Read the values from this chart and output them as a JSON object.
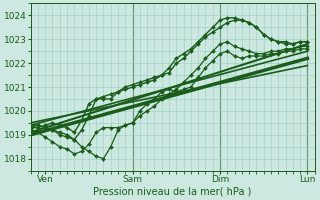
{
  "background_color": "#cce8e0",
  "grid_color": "#99ccc0",
  "line_color": "#1a5c1a",
  "xlabel": "Pression niveau de la mer( hPa )",
  "ylim": [
    1017.5,
    1024.5
  ],
  "yticks": [
    1018,
    1019,
    1020,
    1021,
    1022,
    1023,
    1024
  ],
  "xlim": [
    0,
    78
  ],
  "xtick_positions": [
    4,
    28,
    52,
    76
  ],
  "xtick_labels": [
    "Ven",
    "Sam",
    "Dim",
    "Lun"
  ],
  "vlines": [
    28,
    52,
    76
  ],
  "series": [
    {
      "x": [
        0,
        2,
        4,
        6,
        8,
        10,
        12,
        14,
        16,
        18,
        20,
        22,
        24,
        26,
        28,
        30,
        32,
        34,
        36,
        38,
        40,
        42,
        44,
        46,
        48,
        50,
        52,
        54,
        56,
        58,
        60,
        62,
        64,
        66,
        68,
        70,
        72,
        74,
        76
      ],
      "y": [
        1019.3,
        1019.4,
        1019.3,
        1019.2,
        1019.0,
        1018.9,
        1018.8,
        1018.5,
        1018.3,
        1018.1,
        1018.0,
        1018.5,
        1019.2,
        1019.4,
        1019.5,
        1019.8,
        1020.0,
        1020.2,
        1020.5,
        1020.7,
        1020.9,
        1021.2,
        1021.5,
        1021.8,
        1022.2,
        1022.5,
        1022.8,
        1022.9,
        1022.7,
        1022.6,
        1022.5,
        1022.4,
        1022.4,
        1022.5,
        1022.5,
        1022.6,
        1022.6,
        1022.7,
        1022.7
      ],
      "lw": 0.9,
      "marker": "D",
      "ms": 2.0
    },
    {
      "x": [
        0,
        2,
        4,
        6,
        8,
        10,
        12,
        14,
        16,
        18,
        20,
        22,
        24,
        26,
        28,
        30,
        32,
        34,
        36,
        38,
        40,
        42,
        44,
        46,
        48,
        50,
        52,
        54,
        56,
        58,
        60,
        62,
        64,
        66,
        68,
        70,
        72,
        74,
        76
      ],
      "y": [
        1019.2,
        1019.1,
        1018.9,
        1018.7,
        1018.5,
        1018.4,
        1018.2,
        1018.3,
        1018.6,
        1019.1,
        1019.3,
        1019.3,
        1019.3,
        1019.4,
        1019.5,
        1020.0,
        1020.3,
        1020.5,
        1020.8,
        1020.9,
        1020.8,
        1020.9,
        1021.0,
        1021.4,
        1021.8,
        1022.1,
        1022.4,
        1022.5,
        1022.3,
        1022.2,
        1022.3,
        1022.3,
        1022.3,
        1022.4,
        1022.4,
        1022.5,
        1022.5,
        1022.6,
        1022.6
      ],
      "lw": 0.9,
      "marker": "D",
      "ms": 2.0
    },
    {
      "x": [
        0,
        2,
        4,
        6,
        8,
        10,
        12,
        14,
        16,
        18,
        20,
        22,
        24,
        26,
        28,
        30,
        32,
        34,
        36,
        38,
        40,
        42,
        44,
        46,
        48,
        50,
        52,
        54,
        56,
        58,
        60,
        62,
        64,
        66,
        68,
        70,
        72,
        74,
        76
      ],
      "y": [
        1019.4,
        1019.4,
        1019.3,
        1019.2,
        1019.1,
        1019.0,
        1018.8,
        1019.2,
        1019.8,
        1020.5,
        1020.5,
        1020.5,
        1020.8,
        1020.9,
        1021.0,
        1021.1,
        1021.2,
        1021.3,
        1021.5,
        1021.6,
        1022.0,
        1022.2,
        1022.5,
        1022.8,
        1023.1,
        1023.3,
        1023.5,
        1023.7,
        1023.8,
        1023.8,
        1023.7,
        1023.5,
        1023.2,
        1023.0,
        1022.9,
        1022.8,
        1022.8,
        1022.9,
        1022.9
      ],
      "lw": 1.0,
      "marker": "D",
      "ms": 2.0
    },
    {
      "x": [
        0,
        2,
        4,
        6,
        8,
        10,
        12,
        14,
        16,
        18,
        20,
        22,
        24,
        26,
        28,
        30,
        32,
        34,
        36,
        38,
        40,
        42,
        44,
        46,
        48,
        50,
        52,
        54,
        56,
        58,
        60,
        62,
        64,
        66,
        68,
        70,
        72,
        74,
        76
      ],
      "y": [
        1019.3,
        1019.3,
        1019.4,
        1019.5,
        1019.4,
        1019.3,
        1019.1,
        1019.6,
        1020.3,
        1020.5,
        1020.6,
        1020.7,
        1020.8,
        1021.0,
        1021.1,
        1021.2,
        1021.3,
        1021.4,
        1021.5,
        1021.8,
        1022.2,
        1022.4,
        1022.6,
        1022.9,
        1023.2,
        1023.5,
        1023.8,
        1023.9,
        1023.9,
        1023.8,
        1023.7,
        1023.5,
        1023.2,
        1023.0,
        1022.9,
        1022.9,
        1022.8,
        1022.9,
        1022.9
      ],
      "lw": 1.0,
      "marker": "D",
      "ms": 2.0
    },
    {
      "x": [
        0,
        76
      ],
      "y": [
        1019.0,
        1022.2
      ],
      "lw": 2.5,
      "marker": null,
      "ms": 0
    },
    {
      "x": [
        0,
        76
      ],
      "y": [
        1019.1,
        1022.8
      ],
      "lw": 1.5,
      "marker": null,
      "ms": 0
    },
    {
      "x": [
        0,
        76
      ],
      "y": [
        1019.4,
        1022.5
      ],
      "lw": 1.2,
      "marker": null,
      "ms": 0
    },
    {
      "x": [
        0,
        76
      ],
      "y": [
        1019.5,
        1021.9
      ],
      "lw": 1.2,
      "marker": null,
      "ms": 0
    }
  ]
}
